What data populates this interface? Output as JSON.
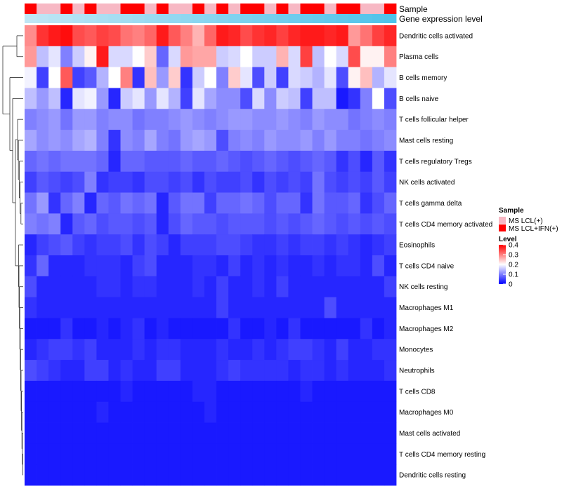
{
  "chart_data": {
    "type": "heatmap",
    "annotation_rows": [
      "Sample",
      "Gene expression level"
    ],
    "sample_groups": [
      "MS LCL(+)",
      "MS LCL+IFN(+)"
    ],
    "sample_group_colors": [
      "#f7b8c4",
      "#ff0000"
    ],
    "sample_assignment": [
      1,
      0,
      0,
      1,
      0,
      1,
      0,
      0,
      1,
      1,
      0,
      1,
      0,
      0,
      1,
      0,
      1,
      0,
      1,
      1,
      0,
      1,
      0,
      1,
      1,
      0,
      1,
      1,
      0,
      0,
      1
    ],
    "gene_expression_gradient": [
      "#c0e6f5",
      "#4fc3ea"
    ],
    "rows": [
      "Dendritic cells activated",
      "Plasma cells",
      "B cells memory",
      "B cells naive",
      "T cells follicular helper",
      "Mast cells resting",
      "T cells regulatory  Tregs",
      "NK cells activated",
      "T cells gamma delta",
      "T cells CD4 memory activated",
      "Eosinophils",
      "T cells CD4 naive",
      "NK cells resting",
      "Macrophages M1",
      "Macrophages M2",
      "Monocytes",
      "Neutrophils",
      "T cells CD8",
      "Macrophages M0",
      "Mast cells activated",
      "T cells CD4 memory resting",
      "Dendritic cells resting"
    ],
    "legend": {
      "sample_title": "Sample",
      "level_title": "Level",
      "level_ticks": [
        "0.4",
        "0.3",
        "0.2",
        "0.1",
        "0"
      ],
      "level_tick_values": [
        0.4,
        0.3,
        0.2,
        0.1,
        0
      ],
      "range": [
        0,
        0.4
      ]
    },
    "color_scale": {
      "low": "#0000ff",
      "mid": "#ffffff",
      "high": "#ff0000",
      "midpoint": 0.2
    },
    "values": [
      [
        0.29,
        0.36,
        0.38,
        0.39,
        0.34,
        0.33,
        0.35,
        0.34,
        0.31,
        0.3,
        0.32,
        0.38,
        0.33,
        0.3,
        0.26,
        0.32,
        0.38,
        0.37,
        0.34,
        0.36,
        0.37,
        0.35,
        0.37,
        0.38,
        0.38,
        0.37,
        0.38,
        0.28,
        0.31,
        0.35,
        0.37
      ],
      [
        0.28,
        0.15,
        0.18,
        0.1,
        0.16,
        0.21,
        0.38,
        0.17,
        0.17,
        0.2,
        0.24,
        0.08,
        0.17,
        0.28,
        0.27,
        0.27,
        0.16,
        0.17,
        0.2,
        0.16,
        0.16,
        0.26,
        0.17,
        0.35,
        0.15,
        0.2,
        0.17,
        0.34,
        0.21,
        0.21,
        0.3
      ],
      [
        0.19,
        0.05,
        0.2,
        0.33,
        0.05,
        0.07,
        0.14,
        0.2,
        0.3,
        0.04,
        0.25,
        0.12,
        0.24,
        0.04,
        0.16,
        0.2,
        0.1,
        0.24,
        0.18,
        0.06,
        0.16,
        0.05,
        0.17,
        0.16,
        0.14,
        0.18,
        0.06,
        0.21,
        0.25,
        0.14,
        0.18
      ],
      [
        0.15,
        0.12,
        0.15,
        0.03,
        0.18,
        0.19,
        0.12,
        0.03,
        0.16,
        0.18,
        0.12,
        0.18,
        0.14,
        0.05,
        0.18,
        0.13,
        0.11,
        0.11,
        0.06,
        0.17,
        0.11,
        0.16,
        0.15,
        0.05,
        0.15,
        0.15,
        0.02,
        0.04,
        0.1,
        0.2,
        0.06
      ],
      [
        0.1,
        0.11,
        0.12,
        0.09,
        0.12,
        0.12,
        0.1,
        0.11,
        0.11,
        0.09,
        0.1,
        0.1,
        0.11,
        0.12,
        0.11,
        0.1,
        0.11,
        0.12,
        0.12,
        0.11,
        0.11,
        0.12,
        0.11,
        0.1,
        0.12,
        0.11,
        0.11,
        0.09,
        0.1,
        0.11,
        0.1
      ],
      [
        0.13,
        0.11,
        0.12,
        0.11,
        0.13,
        0.14,
        0.1,
        0.04,
        0.11,
        0.1,
        0.13,
        0.1,
        0.09,
        0.12,
        0.13,
        0.12,
        0.06,
        0.1,
        0.11,
        0.1,
        0.12,
        0.11,
        0.11,
        0.12,
        0.1,
        0.12,
        0.1,
        0.1,
        0.09,
        0.1,
        0.11
      ],
      [
        0.08,
        0.09,
        0.08,
        0.09,
        0.09,
        0.09,
        0.08,
        0.03,
        0.08,
        0.08,
        0.07,
        0.07,
        0.07,
        0.08,
        0.07,
        0.07,
        0.08,
        0.07,
        0.06,
        0.07,
        0.08,
        0.07,
        0.06,
        0.07,
        0.08,
        0.07,
        0.04,
        0.06,
        0.03,
        0.07,
        0.04
      ],
      [
        0.05,
        0.07,
        0.06,
        0.05,
        0.06,
        0.1,
        0.04,
        0.05,
        0.05,
        0.04,
        0.06,
        0.06,
        0.05,
        0.06,
        0.04,
        0.06,
        0.05,
        0.05,
        0.06,
        0.04,
        0.06,
        0.05,
        0.06,
        0.05,
        0.09,
        0.06,
        0.05,
        0.06,
        0.05,
        0.07,
        0.05
      ],
      [
        0.09,
        0.12,
        0.04,
        0.08,
        0.1,
        0.03,
        0.08,
        0.07,
        0.09,
        0.08,
        0.09,
        0.03,
        0.07,
        0.09,
        0.09,
        0.05,
        0.08,
        0.08,
        0.09,
        0.08,
        0.06,
        0.08,
        0.08,
        0.04,
        0.09,
        0.07,
        0.07,
        0.08,
        0.04,
        0.06,
        0.08
      ],
      [
        0.1,
        0.09,
        0.1,
        0.03,
        0.07,
        0.08,
        0.06,
        0.07,
        0.07,
        0.06,
        0.07,
        0.03,
        0.06,
        0.08,
        0.07,
        0.07,
        0.06,
        0.07,
        0.07,
        0.07,
        0.06,
        0.07,
        0.06,
        0.07,
        0.08,
        0.07,
        0.06,
        0.07,
        0.06,
        0.07,
        0.06
      ],
      [
        0.03,
        0.05,
        0.06,
        0.07,
        0.05,
        0.04,
        0.05,
        0.05,
        0.06,
        0.04,
        0.06,
        0.05,
        0.03,
        0.05,
        0.05,
        0.05,
        0.06,
        0.06,
        0.05,
        0.04,
        0.04,
        0.05,
        0.04,
        0.05,
        0.05,
        0.04,
        0.05,
        0.04,
        0.03,
        0.04,
        0.05
      ],
      [
        0.04,
        0.08,
        0.03,
        0.03,
        0.03,
        0.04,
        0.04,
        0.04,
        0.03,
        0.05,
        0.06,
        0.03,
        0.03,
        0.03,
        0.04,
        0.04,
        0.03,
        0.05,
        0.03,
        0.04,
        0.03,
        0.04,
        0.03,
        0.03,
        0.04,
        0.03,
        0.04,
        0.04,
        0.03,
        0.06,
        0.03
      ],
      [
        0.06,
        0.03,
        0.03,
        0.03,
        0.03,
        0.03,
        0.04,
        0.04,
        0.03,
        0.04,
        0.04,
        0.03,
        0.03,
        0.03,
        0.04,
        0.03,
        0.05,
        0.03,
        0.03,
        0.04,
        0.03,
        0.05,
        0.03,
        0.03,
        0.03,
        0.03,
        0.03,
        0.03,
        0.03,
        0.03,
        0.05
      ],
      [
        0.04,
        0.03,
        0.03,
        0.03,
        0.03,
        0.03,
        0.03,
        0.03,
        0.03,
        0.03,
        0.03,
        0.03,
        0.03,
        0.03,
        0.03,
        0.03,
        0.05,
        0.03,
        0.03,
        0.03,
        0.03,
        0.03,
        0.03,
        0.03,
        0.03,
        0.06,
        0.03,
        0.03,
        0.03,
        0.03,
        0.03
      ],
      [
        0.02,
        0.02,
        0.02,
        0.04,
        0.02,
        0.02,
        0.03,
        0.02,
        0.03,
        0.04,
        0.02,
        0.03,
        0.02,
        0.02,
        0.02,
        0.02,
        0.02,
        0.04,
        0.02,
        0.02,
        0.03,
        0.02,
        0.04,
        0.02,
        0.02,
        0.02,
        0.02,
        0.02,
        0.04,
        0.02,
        0.03
      ],
      [
        0.03,
        0.04,
        0.05,
        0.05,
        0.04,
        0.05,
        0.03,
        0.03,
        0.03,
        0.04,
        0.03,
        0.04,
        0.04,
        0.03,
        0.03,
        0.03,
        0.04,
        0.03,
        0.03,
        0.04,
        0.03,
        0.04,
        0.05,
        0.05,
        0.04,
        0.03,
        0.05,
        0.03,
        0.03,
        0.04,
        0.04
      ],
      [
        0.06,
        0.05,
        0.04,
        0.03,
        0.03,
        0.05,
        0.05,
        0.03,
        0.04,
        0.03,
        0.03,
        0.05,
        0.05,
        0.03,
        0.03,
        0.03,
        0.04,
        0.05,
        0.04,
        0.04,
        0.04,
        0.04,
        0.03,
        0.04,
        0.04,
        0.03,
        0.04,
        0.03,
        0.03,
        0.03,
        0.04
      ],
      [
        0.02,
        0.02,
        0.02,
        0.02,
        0.02,
        0.02,
        0.02,
        0.02,
        0.03,
        0.02,
        0.02,
        0.02,
        0.02,
        0.02,
        0.03,
        0.03,
        0.02,
        0.02,
        0.02,
        0.02,
        0.02,
        0.02,
        0.02,
        0.03,
        0.02,
        0.02,
        0.02,
        0.02,
        0.02,
        0.02,
        0.02
      ],
      [
        0.02,
        0.02,
        0.02,
        0.02,
        0.02,
        0.02,
        0.03,
        0.02,
        0.02,
        0.02,
        0.02,
        0.02,
        0.02,
        0.02,
        0.02,
        0.03,
        0.02,
        0.02,
        0.02,
        0.02,
        0.02,
        0.02,
        0.02,
        0.02,
        0.02,
        0.02,
        0.02,
        0.02,
        0.02,
        0.02,
        0.02
      ],
      [
        0.02,
        0.02,
        0.02,
        0.02,
        0.02,
        0.02,
        0.02,
        0.02,
        0.02,
        0.02,
        0.02,
        0.02,
        0.02,
        0.02,
        0.02,
        0.02,
        0.02,
        0.02,
        0.02,
        0.02,
        0.02,
        0.02,
        0.02,
        0.02,
        0.02,
        0.02,
        0.02,
        0.02,
        0.02,
        0.02,
        0.02
      ],
      [
        0.02,
        0.02,
        0.02,
        0.02,
        0.02,
        0.02,
        0.02,
        0.02,
        0.02,
        0.02,
        0.02,
        0.02,
        0.02,
        0.02,
        0.02,
        0.02,
        0.02,
        0.02,
        0.02,
        0.02,
        0.02,
        0.02,
        0.02,
        0.02,
        0.02,
        0.02,
        0.02,
        0.02,
        0.02,
        0.02,
        0.02
      ],
      [
        0.02,
        0.02,
        0.02,
        0.02,
        0.02,
        0.02,
        0.02,
        0.02,
        0.02,
        0.02,
        0.02,
        0.02,
        0.02,
        0.02,
        0.02,
        0.02,
        0.02,
        0.02,
        0.02,
        0.02,
        0.02,
        0.02,
        0.02,
        0.02,
        0.02,
        0.02,
        0.02,
        0.02,
        0.02,
        0.02,
        0.02
      ]
    ]
  }
}
